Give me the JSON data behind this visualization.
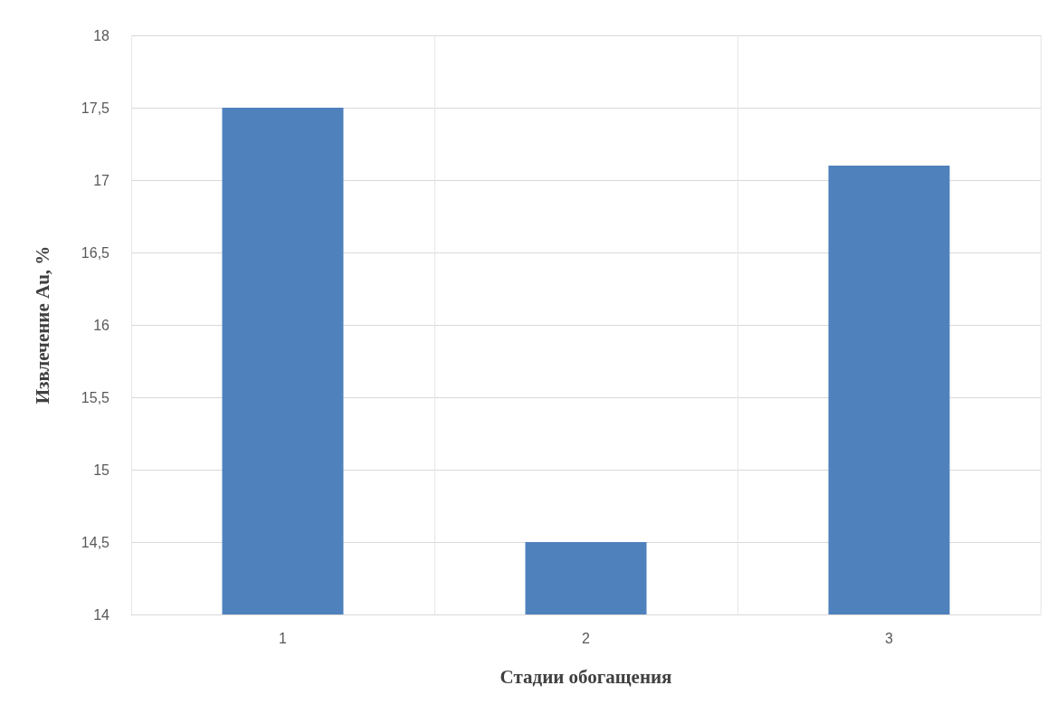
{
  "chart_data": {
    "type": "bar",
    "xlabel": "Стадии обогащения",
    "ylabel": "Извлечение Au, %",
    "categories": [
      "1",
      "2",
      "3"
    ],
    "values": [
      17.5,
      14.5,
      17.1
    ],
    "color": "#4f81bd",
    "ylim": [
      14,
      18
    ],
    "yticks": [
      14,
      {
        "value": 14.5,
        "label": "14,5"
      },
      15,
      {
        "value": 15.5,
        "label": "15,5"
      },
      16,
      {
        "value": 16.5,
        "label": "16,5"
      },
      17,
      {
        "value": 17.5,
        "label": "17,5"
      },
      18
    ],
    "grid": true
  }
}
